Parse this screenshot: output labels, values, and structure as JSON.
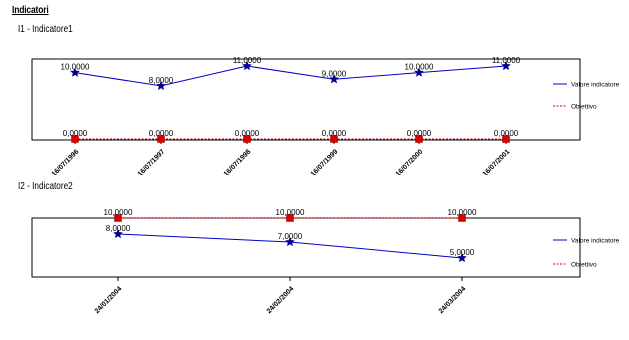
{
  "page_title": "Indicatori",
  "chart_data": [
    {
      "type": "line",
      "title": "I1 - Indicatore1",
      "categories": [
        "16/07/1996",
        "16/07/1997",
        "16/07/1998",
        "16/07/1999",
        "16/07/2000",
        "16/07/2001"
      ],
      "series": [
        {
          "name": "Valore indicatore",
          "values": [
            10,
            8,
            11,
            9,
            10,
            11
          ],
          "labels": [
            "10,0000",
            "8,0000",
            "11,0000",
            "9,0000",
            "10,0000",
            "11,0000"
          ],
          "color": "#0000cc",
          "marker": "star"
        },
        {
          "name": "Obiettivo",
          "values": [
            0,
            0,
            0,
            0,
            0,
            0
          ],
          "labels": [
            "0,0000",
            "0,0000",
            "0,0000",
            "0,0000",
            "0,0000",
            "0,0000"
          ],
          "color": "#cc0000",
          "marker": "square",
          "dashed": true
        }
      ],
      "ylim": [
        0,
        11
      ],
      "grid": false,
      "legend": "right"
    },
    {
      "type": "line",
      "title": "I2 - Indicatore2",
      "categories": [
        "24/01/2004",
        "24/02/2004",
        "24/03/2004"
      ],
      "series": [
        {
          "name": "Valore indicatore",
          "values": [
            8,
            7,
            5
          ],
          "labels": [
            "8,0000",
            "7,0000",
            "5,0000"
          ],
          "color": "#0000cc",
          "marker": "star"
        },
        {
          "name": "Obiettivo",
          "values": [
            10,
            10,
            10
          ],
          "labels": [
            "10,0000",
            "10,0000",
            "10,0000"
          ],
          "color": "#cc0000",
          "marker": "square",
          "dashed": true
        }
      ],
      "ylim": [
        5,
        10
      ],
      "grid": false,
      "legend": "right"
    }
  ]
}
